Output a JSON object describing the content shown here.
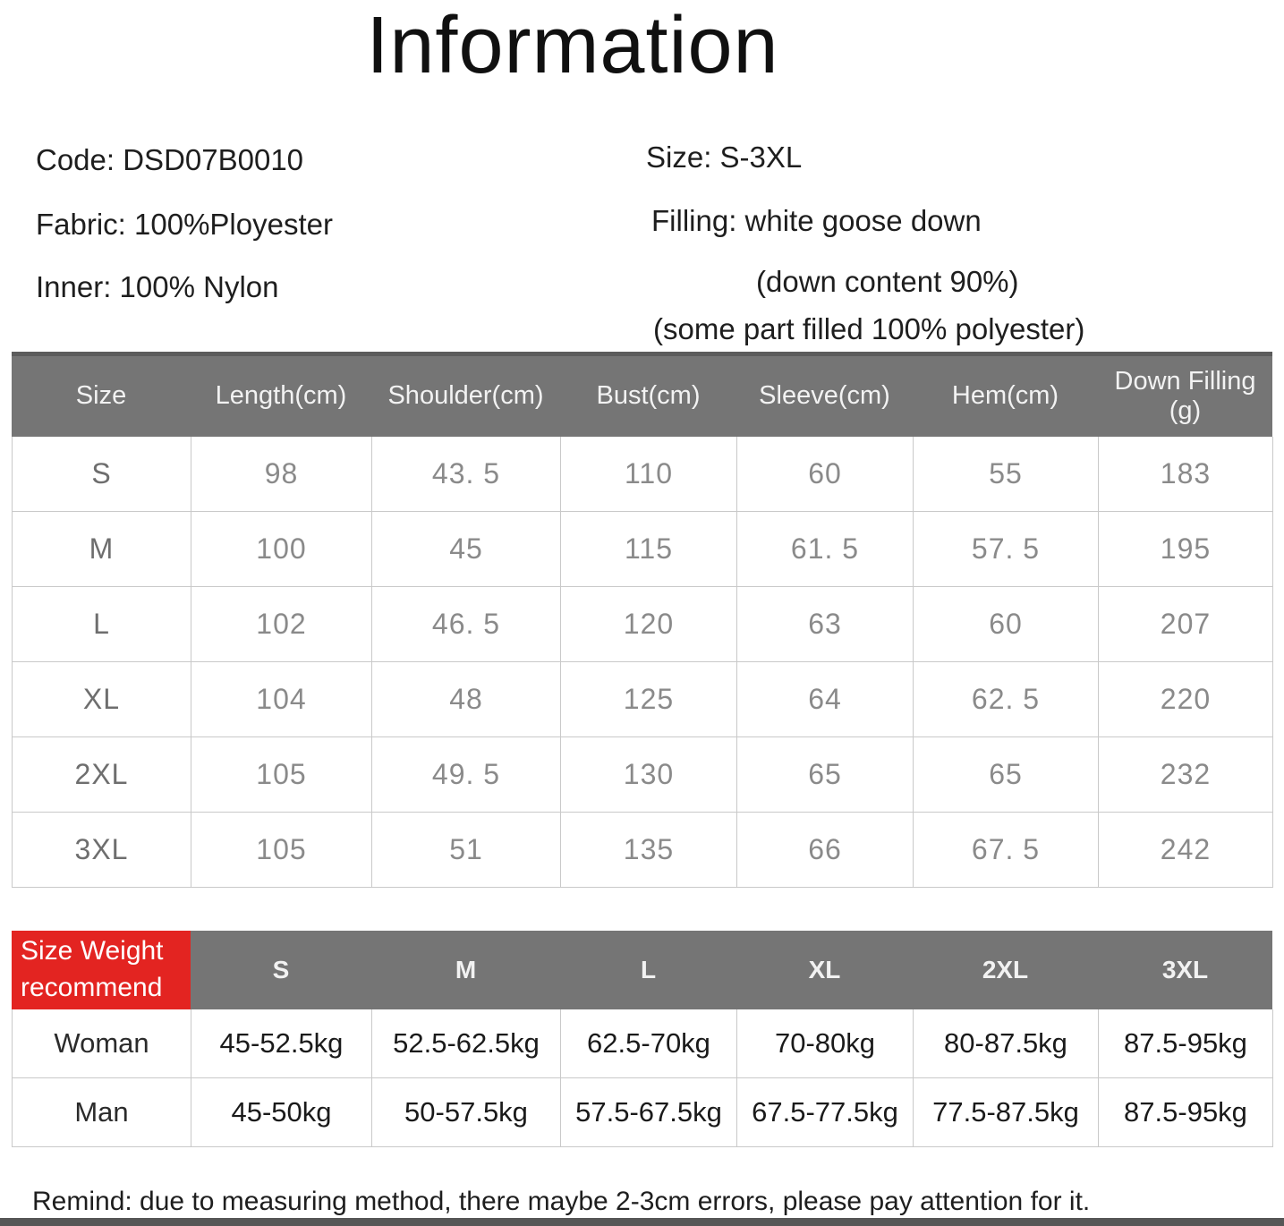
{
  "title": "Information",
  "info": {
    "code": "Code: DSD07B0010",
    "fabric": "Fabric: 100%Ployester",
    "inner": "Inner: 100% Nylon",
    "size": "Size: S-3XL",
    "filling": "Filling: white goose down",
    "down_content": "(down content 90%)",
    "some_part": "(some part filled 100% polyester)"
  },
  "size_table": {
    "headers": [
      "Size",
      "Length(cm)",
      "Shoulder(cm)",
      "Bust(cm)",
      "Sleeve(cm)",
      "Hem(cm)",
      "Down Filling (g)"
    ],
    "rows": [
      [
        "S",
        "98",
        "43. 5",
        "110",
        "60",
        "55",
        "183"
      ],
      [
        "M",
        "100",
        "45",
        "115",
        "61. 5",
        "57. 5",
        "195"
      ],
      [
        "L",
        "102",
        "46. 5",
        "120",
        "63",
        "60",
        "207"
      ],
      [
        "XL",
        "104",
        "48",
        "125",
        "64",
        "62. 5",
        "220"
      ],
      [
        "2XL",
        "105",
        "49. 5",
        "130",
        "65",
        "65",
        "232"
      ],
      [
        "3XL",
        "105",
        "51",
        "135",
        "66",
        "67. 5",
        "242"
      ]
    ]
  },
  "weight_table": {
    "corner_line1": "Size Weight",
    "corner_line2": "recommend",
    "headers": [
      "S",
      "M",
      "L",
      "XL",
      "2XL",
      "3XL"
    ],
    "rows": [
      [
        "Woman",
        "45-52.5kg",
        "52.5-62.5kg",
        "62.5-70kg",
        "70-80kg",
        "80-87.5kg",
        "87.5-95kg"
      ],
      [
        "Man",
        "45-50kg",
        "50-57.5kg",
        "57.5-67.5kg",
        "67.5-77.5kg",
        "77.5-87.5kg",
        "87.5-95kg"
      ]
    ]
  },
  "remind": "Remind: due to measuring method, there maybe 2-3cm errors, please pay attention for it.",
  "colors": {
    "table_header_bg": "#757575",
    "accent_red": "#e32421",
    "table_border": "#c9c9c9",
    "bottom_bar": "#565656"
  }
}
